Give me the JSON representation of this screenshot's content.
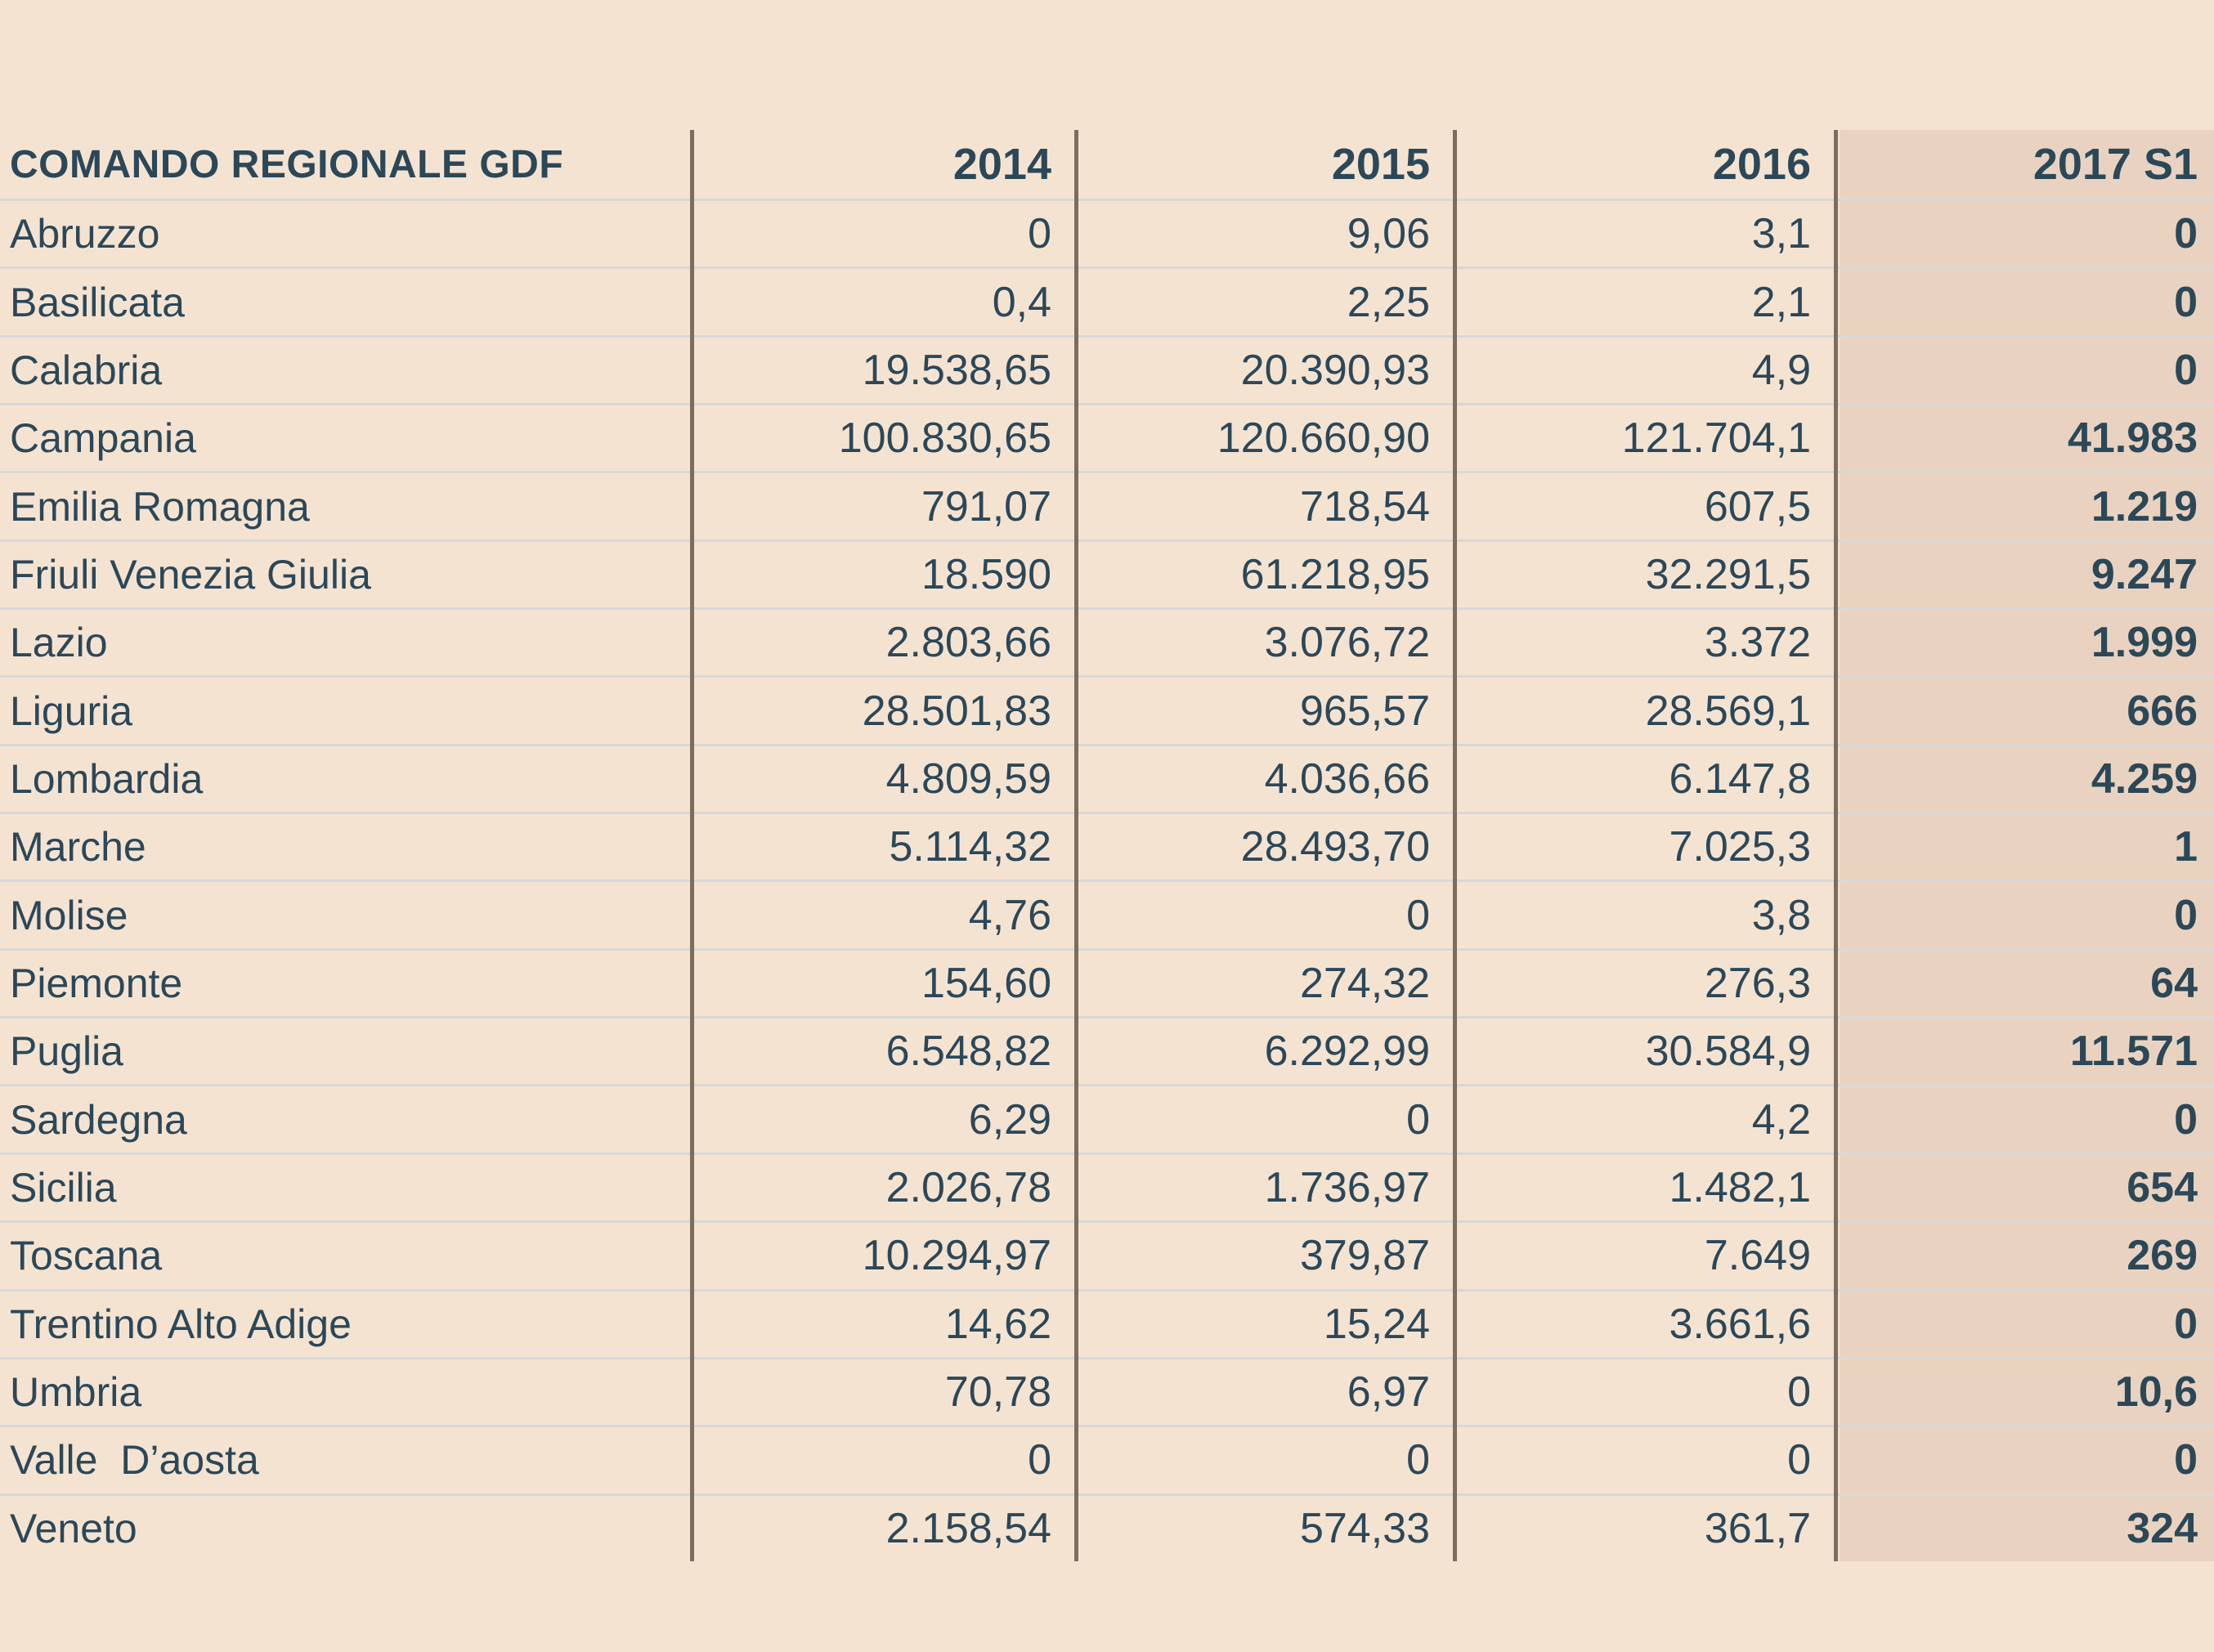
{
  "table": {
    "region_column_header": "COMANDO REGIONALE GDF",
    "year_columns": [
      "2014",
      "2015",
      "2016",
      "2017 S1"
    ],
    "rows": [
      {
        "region": "Abruzzo",
        "values": [
          "0",
          "9,06",
          "3,1",
          "0"
        ]
      },
      {
        "region": "Basilicata",
        "values": [
          "0,4",
          "2,25",
          "2,1",
          "0"
        ]
      },
      {
        "region": "Calabria",
        "values": [
          "19.538,65",
          "20.390,93",
          "4,9",
          "0"
        ]
      },
      {
        "region": "Campania",
        "values": [
          "100.830,65",
          "120.660,90",
          "121.704,1",
          "41.983"
        ]
      },
      {
        "region": "Emilia Romagna",
        "values": [
          "791,07",
          "718,54",
          "607,5",
          "1.219"
        ]
      },
      {
        "region": "Friuli Venezia Giulia",
        "values": [
          "18.590",
          "61.218,95",
          "32.291,5",
          "9.247"
        ]
      },
      {
        "region": "Lazio",
        "values": [
          "2.803,66",
          "3.076,72",
          "3.372",
          "1.999"
        ]
      },
      {
        "region": "Liguria",
        "values": [
          "28.501,83",
          "965,57",
          "28.569,1",
          "666"
        ]
      },
      {
        "region": "Lombardia",
        "values": [
          "4.809,59",
          "4.036,66",
          "6.147,8",
          "4.259"
        ]
      },
      {
        "region": "Marche",
        "values": [
          "5.114,32",
          "28.493,70",
          "7.025,3",
          "1"
        ]
      },
      {
        "region": "Molise",
        "values": [
          "4,76",
          "0",
          "3,8",
          "0"
        ]
      },
      {
        "region": "Piemonte",
        "values": [
          "154,60",
          "274,32",
          "276,3",
          "64"
        ]
      },
      {
        "region": "Puglia",
        "values": [
          "6.548,82",
          "6.292,99",
          "30.584,9",
          "11.571"
        ]
      },
      {
        "region": "Sardegna",
        "values": [
          "6,29",
          "0",
          "4,2",
          "0"
        ]
      },
      {
        "region": "Sicilia",
        "values": [
          "2.026,78",
          "1.736,97",
          "1.482,1",
          "654"
        ]
      },
      {
        "region": "Toscana",
        "values": [
          "10.294,97",
          "379,87",
          "7.649",
          "269"
        ]
      },
      {
        "region": "Trentino Alto Adige",
        "values": [
          "14,62",
          "15,24",
          "3.661,6",
          "0"
        ]
      },
      {
        "region": "Umbria",
        "values": [
          "70,78",
          "6,97",
          "0",
          "10,6"
        ]
      },
      {
        "region": "Valle  D’aosta",
        "values": [
          "0",
          "0",
          "0",
          "0"
        ]
      },
      {
        "region": "Veneto",
        "values": [
          "2.158,54",
          "574,33",
          "361,7",
          "324"
        ]
      }
    ]
  },
  "colors": {
    "background": "#f5e3d2",
    "highlight_column": "#e9d3c0",
    "text": "#2b4859",
    "vertical_divider": "#7e6c5e",
    "row_line": "#d8d8d8"
  },
  "chart_data": {
    "type": "table",
    "title": "COMANDO REGIONALE GDF",
    "categories": [
      "Abruzzo",
      "Basilicata",
      "Calabria",
      "Campania",
      "Emilia Romagna",
      "Friuli Venezia Giulia",
      "Lazio",
      "Liguria",
      "Lombardia",
      "Marche",
      "Molise",
      "Piemonte",
      "Puglia",
      "Sardegna",
      "Sicilia",
      "Toscana",
      "Trentino Alto Adige",
      "Umbria",
      "Valle D’aosta",
      "Veneto"
    ],
    "series": [
      {
        "name": "2014",
        "values": [
          0,
          0.4,
          19538.65,
          100830.65,
          791.07,
          18590,
          2803.66,
          28501.83,
          4809.59,
          5114.32,
          4.76,
          154.6,
          6548.82,
          6.29,
          2026.78,
          10294.97,
          14.62,
          70.78,
          0,
          2158.54
        ]
      },
      {
        "name": "2015",
        "values": [
          9.06,
          2.25,
          20390.93,
          120660.9,
          718.54,
          61218.95,
          3076.72,
          965.57,
          4036.66,
          28493.7,
          0,
          274.32,
          6292.99,
          0,
          1736.97,
          379.87,
          15.24,
          6.97,
          0,
          574.33
        ]
      },
      {
        "name": "2016",
        "values": [
          3.1,
          2.1,
          4.9,
          121704.1,
          607.5,
          32291.5,
          3372,
          28569.1,
          6147.8,
          7025.3,
          3.8,
          276.3,
          30584.9,
          4.2,
          1482.1,
          7649,
          3661.6,
          0,
          0,
          361.7
        ]
      },
      {
        "name": "2017 S1",
        "values": [
          0,
          0,
          0,
          41983,
          1219,
          9247,
          1999,
          666,
          4259,
          1,
          0,
          64,
          11571,
          0,
          654,
          269,
          0,
          10.6,
          0,
          324
        ]
      }
    ],
    "highlighted_series": "2017 S1"
  }
}
